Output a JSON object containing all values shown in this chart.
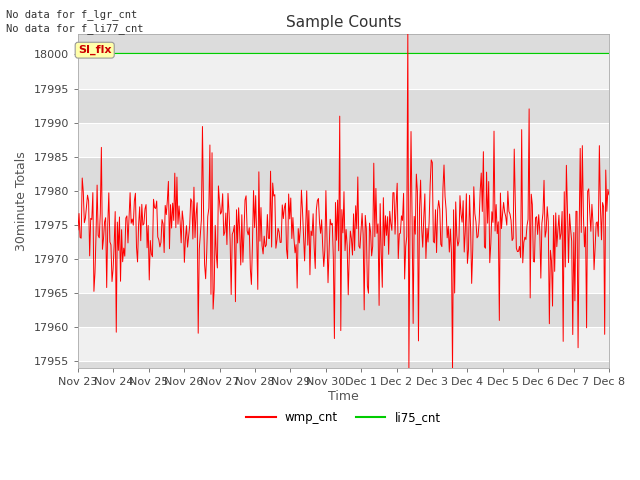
{
  "title": "Sample Counts",
  "ylabel": "30minute Totals",
  "xlabel": "Time",
  "ylim": [
    17954,
    18003
  ],
  "yticks": [
    17955,
    17960,
    17965,
    17970,
    17975,
    17980,
    17985,
    17990,
    17995,
    18000
  ],
  "xtick_labels": [
    "Nov 23",
    "Nov 24",
    "Nov 25",
    "Nov 26",
    "Nov 27",
    "Nov 28",
    "Nov 29",
    "Nov 30",
    "Dec 1",
    "Dec 2",
    "Dec 3",
    "Dec 4",
    "Dec 5",
    "Dec 6",
    "Dec 7",
    "Dec 8"
  ],
  "wmp_mean": 17975,
  "li75_value": 18000.2,
  "legend_entries": [
    "wmp_cnt",
    "li75_cnt"
  ],
  "legend_colors": [
    "#ff0000",
    "#00cc00"
  ],
  "no_data_text1": "No data for f_lgr_cnt",
  "no_data_text2": "No data for f_li77_cnt",
  "si_flx_text": "SI_flx",
  "background_color": "#ffffff",
  "band_color_dark": "#dcdcdc",
  "band_color_light": "#f0f0f0",
  "title_fontsize": 11,
  "axis_fontsize": 9,
  "tick_fontsize": 8,
  "n_points": 500
}
